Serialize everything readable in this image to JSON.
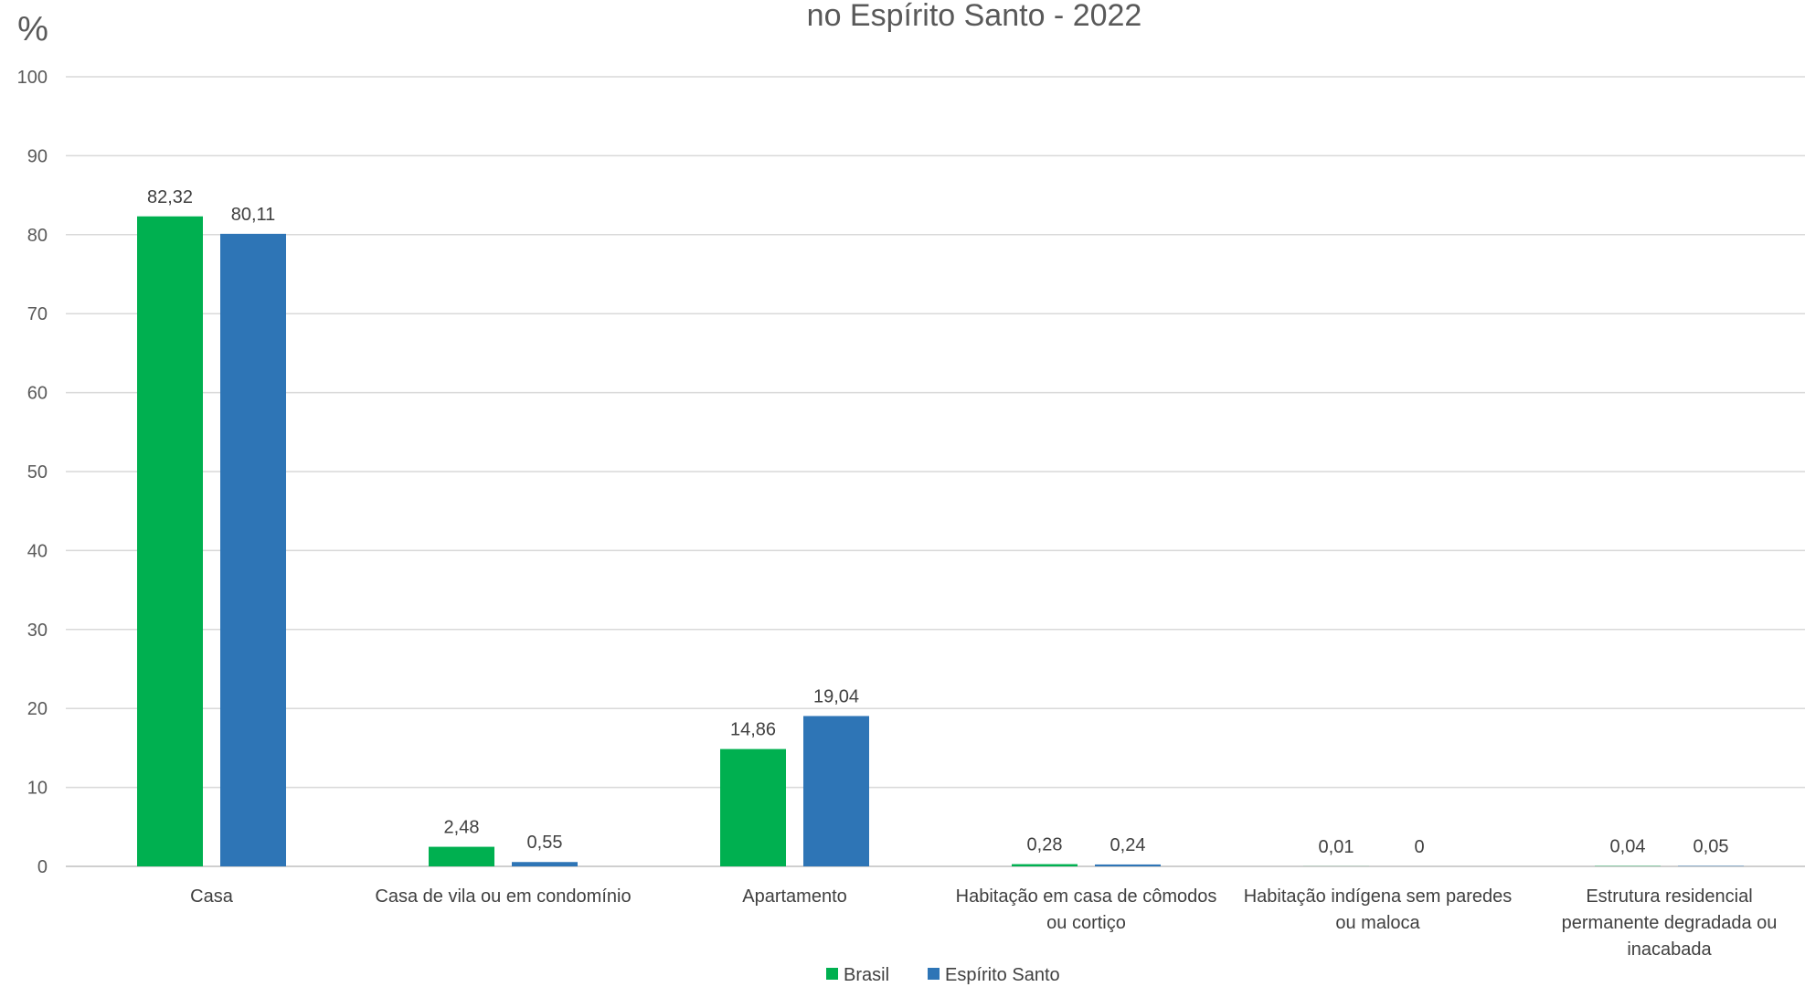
{
  "chart_data": {
    "type": "bar",
    "title": "no Espírito Santo - 2022",
    "unit_label": "%",
    "ylim": [
      0,
      100
    ],
    "yticks": [
      0,
      10,
      20,
      30,
      40,
      50,
      60,
      70,
      80,
      90,
      100
    ],
    "grid": true,
    "legend_position": "bottom",
    "categories": [
      [
        "Casa"
      ],
      [
        "Casa de vila ou em condomínio"
      ],
      [
        "Apartamento"
      ],
      [
        "Habitação em casa de cômodos",
        "ou cortiço"
      ],
      [
        "Habitação indígena sem paredes",
        "ou maloca"
      ],
      [
        "Estrutura residencial",
        "permanente degradada ou",
        "inacabada"
      ]
    ],
    "series": [
      {
        "name": "Brasil",
        "color": "#00b050",
        "values": [
          82.32,
          2.48,
          14.86,
          0.28,
          0.01,
          0.04
        ],
        "labels": [
          "82,32",
          "2,48",
          "14,86",
          "0,28",
          "0,01",
          "0,04"
        ]
      },
      {
        "name": "Espírito Santo",
        "color": "#2e75b6",
        "values": [
          80.11,
          0.55,
          19.04,
          0.24,
          0,
          0.05
        ],
        "labels": [
          "80,11",
          "0,55",
          "19,04",
          "0,24",
          "0",
          "0,05"
        ]
      }
    ]
  }
}
